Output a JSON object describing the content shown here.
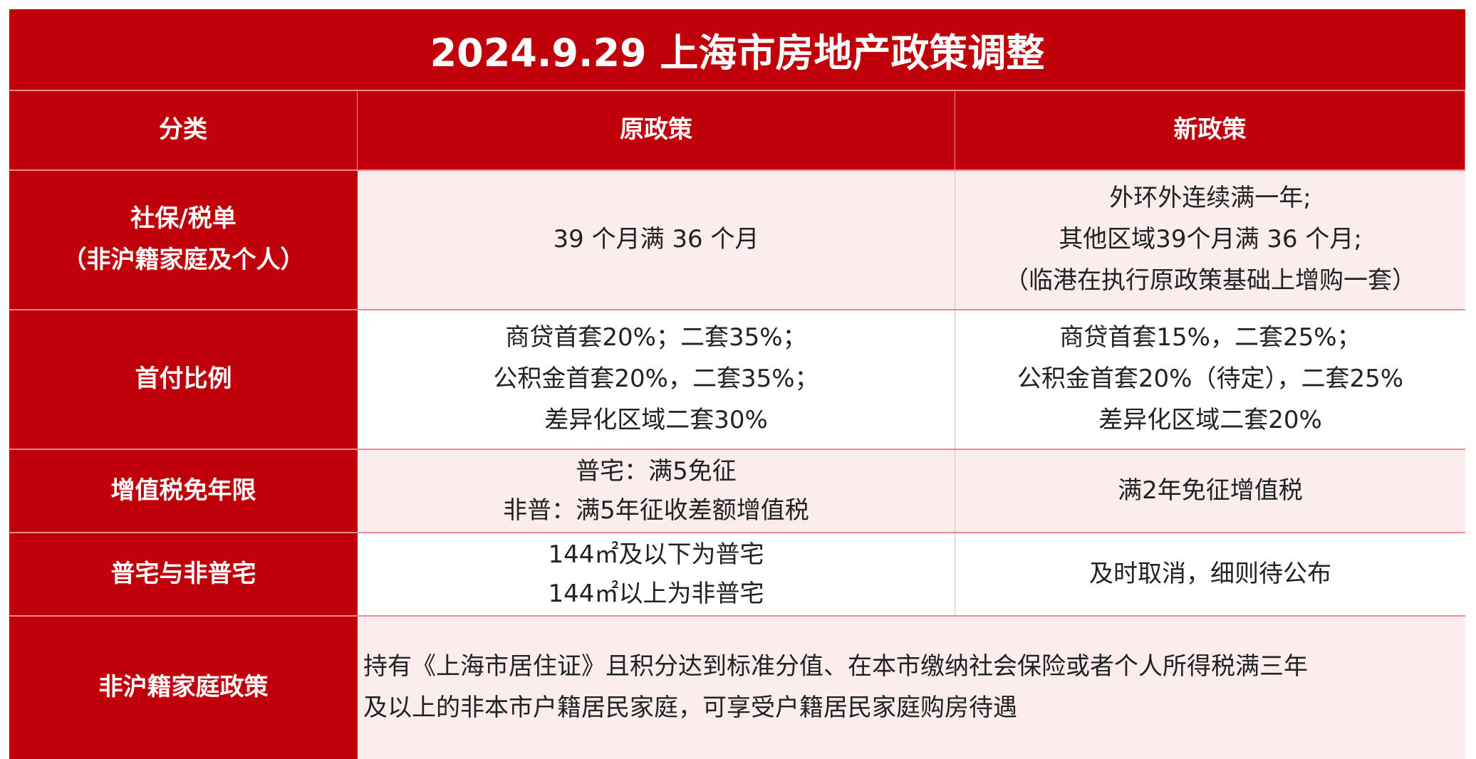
{
  "title": "2024.9.29 上海市房地产政策调整",
  "headers": [
    "分类",
    "原政策",
    "新政策"
  ],
  "rows": [
    {
      "category": [
        "社保/税单",
        "（非沪籍家庭及个人）"
      ],
      "old": [
        "39 个月满 36 个月"
      ],
      "new": [
        "外环外连续满一年;",
        "其他区域39个月满 36 个月;",
        "（临港在执行原政策基础上增购一套）"
      ]
    },
    {
      "category": [
        "首付比例"
      ],
      "old": [
        "商贷首套20%；二套35%；",
        "公积金首套20%，二套35%；",
        "差异化区域二套30%"
      ],
      "new": [
        "商贷首套15%，二套25%；",
        "公积金首套20%（待定），二套25%",
        "差异化区域二套20%"
      ]
    },
    {
      "category": [
        "增值税免年限"
      ],
      "old": [
        "普宅：满5免征",
        "非普：满5年征收差额增值税"
      ],
      "new": [
        "满2年免征增值税"
      ]
    },
    {
      "category": [
        "普宅与非普宅"
      ],
      "old": [
        "144㎡及以下为普宅",
        "144㎡以上为非普宅"
      ],
      "new": [
        "及时取消，细则待公布"
      ]
    },
    {
      "category": [
        "非沪籍家庭政策"
      ],
      "merged": [
        "持有《上海市居住证》且积分达到标准分值、在本市缴纳社会保险或者个人所得税满三年",
        "及以上的非本市户籍居民家庭，可享受户籍居民家庭购房待遇"
      ]
    }
  ],
  "colors": {
    "header_red": "#c0000a",
    "row_pink": "#fbecee",
    "row_white": "#ffffff"
  }
}
